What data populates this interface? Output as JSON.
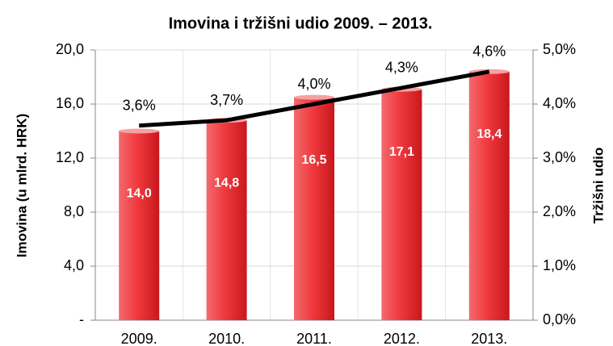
{
  "chart_data": {
    "type": "bar",
    "title": "Imovina i tržišni udio 2009. – 2013.",
    "y_label": "Imovina (u mlrd. HRK)",
    "y2_label": "Tržišni udio",
    "categories": [
      "2009.",
      "2010.",
      "2011.",
      "2012.",
      "2013."
    ],
    "series": [
      {
        "name": "Imovina",
        "type": "bar",
        "color": "#e8343a",
        "values": [
          14.0,
          14.8,
          16.5,
          17.1,
          18.4
        ],
        "value_labels": [
          "14,0",
          "14,8",
          "16,5",
          "17,1",
          "18,4"
        ]
      },
      {
        "name": "Tržišni udio",
        "type": "line",
        "axis": "y2",
        "color": "#000000",
        "values": [
          3.6,
          3.7,
          4.0,
          4.3,
          4.6
        ],
        "value_labels": [
          "3,6%",
          "3,7%",
          "4,0%",
          "4,3%",
          "4,6%"
        ]
      }
    ],
    "ylim": [
      0,
      20
    ],
    "yticks": [
      {
        "value": 0,
        "label": "-"
      },
      {
        "value": 4,
        "label": "4,0"
      },
      {
        "value": 8,
        "label": "8,0"
      },
      {
        "value": 12,
        "label": "12,0"
      },
      {
        "value": 16,
        "label": "16,0"
      },
      {
        "value": 20,
        "label": "20,0"
      }
    ],
    "y2lim": [
      0,
      5
    ],
    "y2ticks": [
      {
        "value": 0,
        "label": "0,0%"
      },
      {
        "value": 1,
        "label": "1,0%"
      },
      {
        "value": 2,
        "label": "2,0%"
      },
      {
        "value": 3,
        "label": "3,0%"
      },
      {
        "value": 4,
        "label": "4,0%"
      },
      {
        "value": 5,
        "label": "5,0%"
      }
    ],
    "grid": true
  }
}
